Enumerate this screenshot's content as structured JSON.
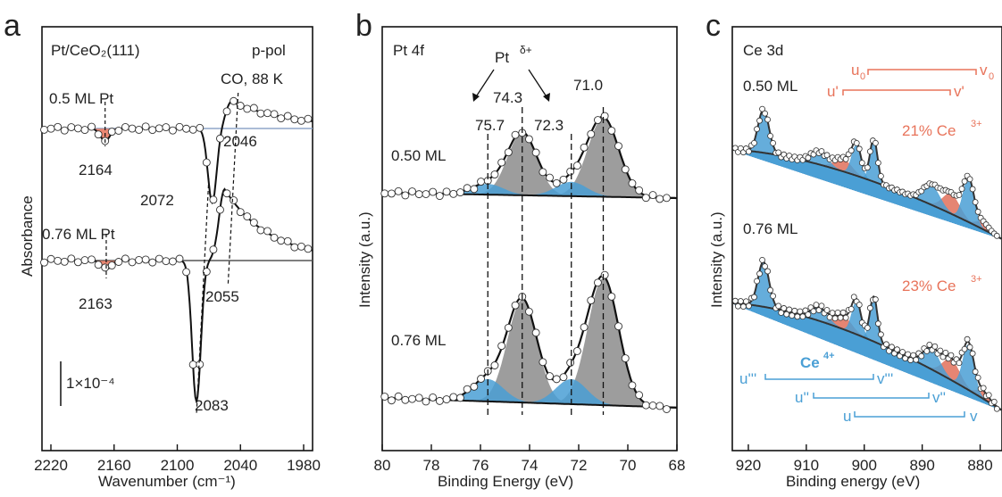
{
  "chart_data": [
    {
      "panel": "a",
      "type": "line",
      "sample": "Pt/CeO₂(111)",
      "polarization": "p-pol",
      "condition": "CO, 88 K",
      "xlabel": "Wavenumber (cm⁻¹)",
      "ylabel": "Absorbance",
      "xlim": [
        2220,
        1980
      ],
      "x_ticks": [
        "2220",
        "2160",
        "2100",
        "2040",
        "1980"
      ],
      "scale_bar": "1×10⁻⁴",
      "series": [
        {
          "name": "0.5 ML Pt",
          "peaks": [
            {
              "x": 2164,
              "label": "2164"
            },
            {
              "x": 2072,
              "label": "2072"
            },
            {
              "x": 2046,
              "label": "2046"
            }
          ]
        },
        {
          "name": "0.76 ML Pt",
          "peaks": [
            {
              "x": 2163,
              "label": "2163"
            },
            {
              "x": 2083,
              "label": "2083"
            },
            {
              "x": 2055,
              "label": "2055"
            }
          ]
        }
      ]
    },
    {
      "panel": "b",
      "type": "area",
      "title": "Pt 4f",
      "annotation": "Pt",
      "annotation_sup": "δ+",
      "xlabel": "Binding Energy (eV)",
      "ylabel": "Intensity (a.u.)",
      "xlim": [
        80,
        68
      ],
      "x_ticks": [
        "80",
        "78",
        "76",
        "74",
        "72",
        "70",
        "68"
      ],
      "peak_labels": [
        "75.7",
        "74.3",
        "72.3",
        "71.0"
      ],
      "series": [
        {
          "name": "0.50 ML",
          "components": {
            "Pt0": [
              74.3,
              71.0
            ],
            "Pt_delta": [
              75.7,
              72.3
            ]
          }
        },
        {
          "name": "0.76 ML",
          "components": {
            "Pt0": [
              74.3,
              71.0
            ],
            "Pt_delta": [
              75.7,
              72.3
            ]
          }
        }
      ]
    },
    {
      "panel": "c",
      "type": "area",
      "title": "Ce 3d",
      "xlabel": "Binding energy (eV)",
      "ylabel": "Intensity (a.u.)",
      "xlim": [
        922,
        877
      ],
      "x_ticks": [
        "920",
        "910",
        "900",
        "890",
        "880"
      ],
      "ce3_labels": {
        "u0": "u",
        "u0_sub": "0",
        "v0": "v",
        "v0_sub": "0",
        "uprime": "u'",
        "vprime": "v'"
      },
      "ce4_label": "Ce",
      "ce4_sup": "4+",
      "ce4_labels": {
        "u3": "u'''",
        "v3": "v'''",
        "u2": "u''",
        "v2": "v''",
        "u": "u",
        "v": "v"
      },
      "series": [
        {
          "name": "0.50 ML",
          "ce3_fraction": "21% Ce",
          "ce3_sup": "3+"
        },
        {
          "name": "0.76 ML",
          "ce3_fraction": "23% Ce",
          "ce3_sup": "3+"
        }
      ]
    }
  ]
}
